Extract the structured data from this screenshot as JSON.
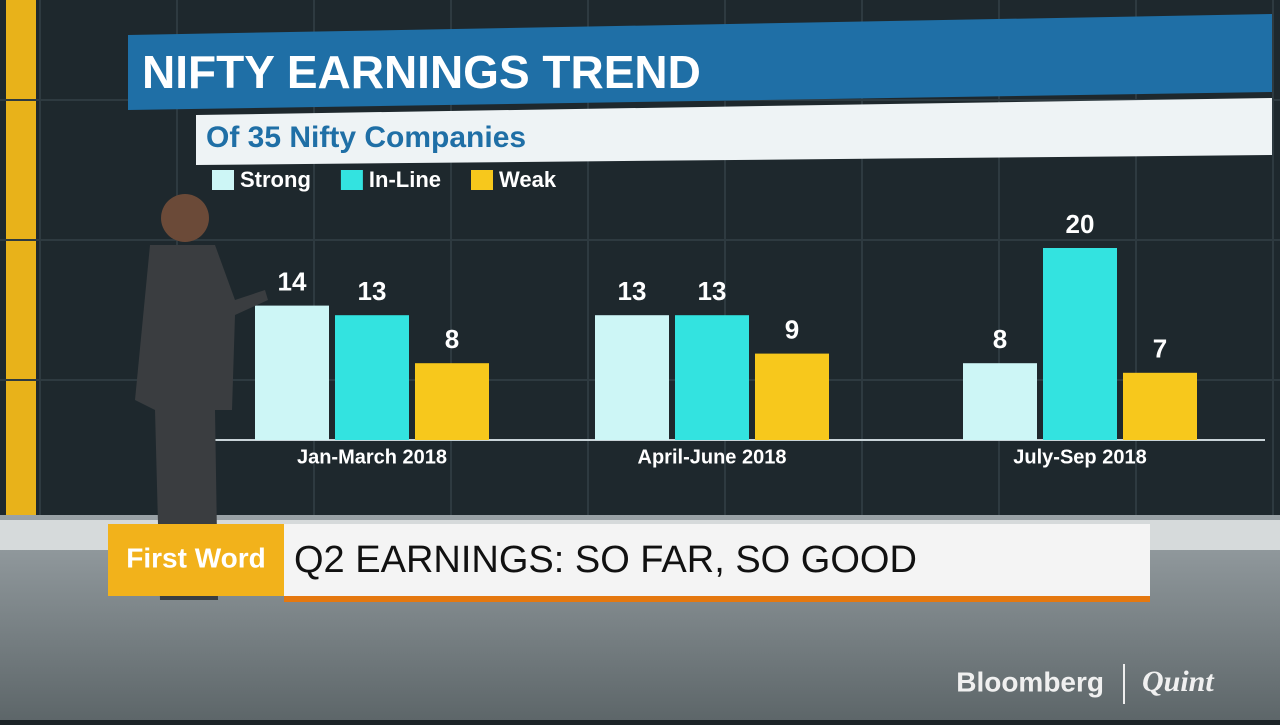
{
  "chart_data": {
    "type": "bar",
    "title": "NIFTY EARNINGS TREND",
    "subtitle": "Of 35 Nifty Companies",
    "categories": [
      "Jan-March 2018",
      "April-June 2018",
      "July-Sep 2018"
    ],
    "series": [
      {
        "name": "Strong",
        "color": "#cdf6f6",
        "values": [
          14,
          13,
          8
        ]
      },
      {
        "name": "In-Line",
        "color": "#33e3e0",
        "values": [
          13,
          13,
          20
        ]
      },
      {
        "name": "Weak",
        "color": "#f7c81c",
        "values": [
          8,
          9,
          7
        ]
      }
    ]
  },
  "banner": {
    "tag": "First Word",
    "headline": "Q2 EARNINGS: SO FAR, SO GOOD"
  },
  "logo": {
    "brand": "Bloomberg",
    "partner": "Quint"
  }
}
